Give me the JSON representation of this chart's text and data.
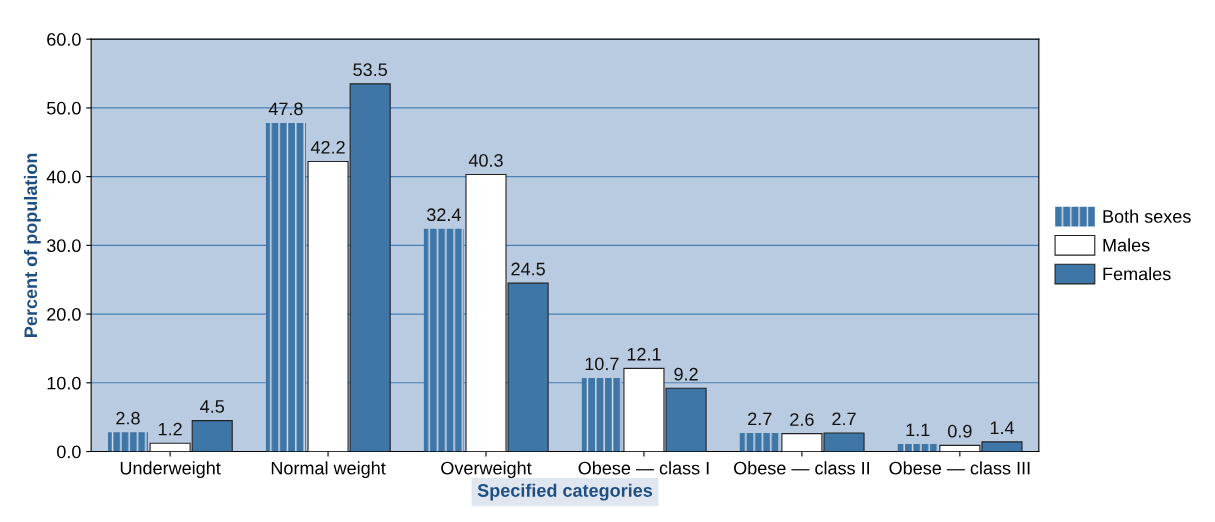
{
  "chart_data": {
    "type": "bar",
    "xlabel": "Specified categories",
    "ylabel": "Percent of population",
    "categories": [
      "Underweight",
      "Normal weight",
      "Overweight",
      "Obese — class I",
      "Obese — class II",
      "Obese — class III"
    ],
    "series": [
      {
        "name": "Both sexes",
        "color": "#3f76a8",
        "values": [
          2.8,
          47.8,
          32.4,
          10.7,
          2.7,
          1.1
        ]
      },
      {
        "name": "Males",
        "color": "#ffffff",
        "values": [
          1.2,
          42.2,
          40.3,
          12.1,
          2.6,
          0.9
        ]
      },
      {
        "name": "Females",
        "color": "#3f76a8",
        "values": [
          4.5,
          53.5,
          24.5,
          9.2,
          2.7,
          1.4
        ]
      }
    ],
    "ylim": [
      0,
      60
    ],
    "yticks": [
      {
        "value": 0,
        "label": "0.0"
      },
      {
        "value": 10,
        "label": "10.0"
      },
      {
        "value": 20,
        "label": "20.0"
      },
      {
        "value": 30,
        "label": "30.0"
      },
      {
        "value": 40,
        "label": "40.0"
      },
      {
        "value": 50,
        "label": "50.0"
      },
      {
        "value": 60,
        "label": "60.0"
      }
    ],
    "grid": "y",
    "legend": "right",
    "data_labels": true
  }
}
